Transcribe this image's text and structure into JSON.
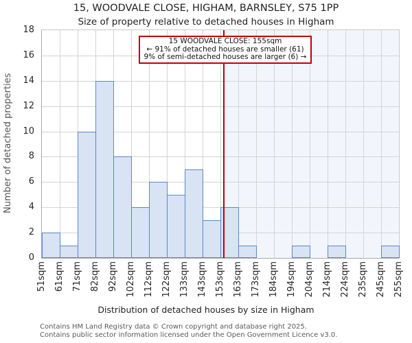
{
  "chart_data": {
    "type": "bar",
    "title": "15, WOODVALE CLOSE, HIGHAM, BARNSLEY, S75 1PP",
    "subtitle": "Size of property relative to detached houses in Higham",
    "xlabel": "Distribution of detached houses by size in Higham",
    "ylabel": "Number of detached properties",
    "bin_edges_sqm": [
      51,
      61,
      71,
      82,
      92,
      102,
      112,
      122,
      133,
      143,
      153,
      163,
      173,
      184,
      194,
      204,
      214,
      224,
      235,
      245,
      255
    ],
    "xtick_labels": [
      "51sqm",
      "61sqm",
      "71sqm",
      "82sqm",
      "92sqm",
      "102sqm",
      "112sqm",
      "122sqm",
      "133sqm",
      "143sqm",
      "153sqm",
      "163sqm",
      "173sqm",
      "184sqm",
      "194sqm",
      "204sqm",
      "214sqm",
      "224sqm",
      "235sqm",
      "245sqm",
      "255sqm"
    ],
    "values": [
      2,
      1,
      10,
      14,
      8,
      4,
      6,
      5,
      7,
      3,
      4,
      1,
      0,
      0,
      1,
      0,
      1,
      0,
      0,
      1
    ],
    "ylim": [
      0,
      18
    ],
    "ytick_step": 2,
    "grid": true,
    "marker": {
      "value_sqm": 155,
      "label": "155sqm"
    },
    "colors": {
      "bar_fill": "#d8e3f4",
      "bar_edge": "#5b87c5",
      "marker_line": "#c00000",
      "annotation_border": "#c00000",
      "shade_right_of_marker": "#f2f5fc",
      "gridline": "#d4d4d4"
    }
  },
  "annotation": {
    "line1": "15 WOODVALE CLOSE: 155sqm",
    "line2": "← 91% of detached houses are smaller (61)",
    "line3": "9% of semi-detached houses are larger (6) →"
  },
  "footer": {
    "line1": "Contains HM Land Registry data © Crown copyright and database right 2025.",
    "line2": "Contains public sector information licensed under the Open Government Licence v3.0."
  }
}
